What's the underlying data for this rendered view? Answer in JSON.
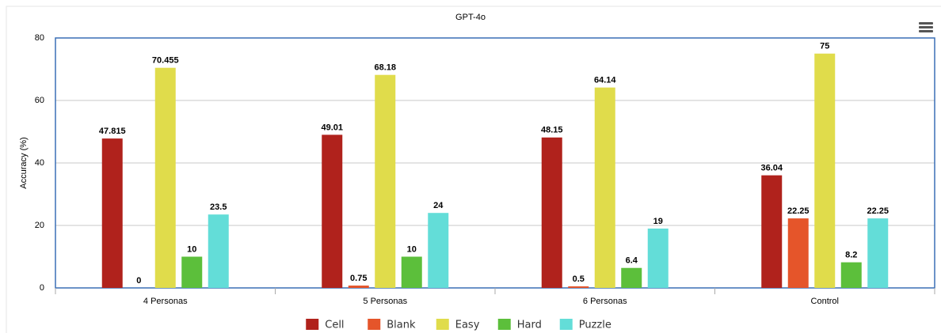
{
  "chart_data": {
    "type": "bar",
    "title": "GPT-4o",
    "y_label": "Accuracy (%)",
    "categories": [
      "4 Personas",
      "5 Personas",
      "6 Personas",
      "Control"
    ],
    "series": [
      {
        "name": "Cell",
        "color": "#b0221c",
        "values": [
          47.815,
          49.01,
          48.15,
          36.04
        ]
      },
      {
        "name": "Blank",
        "color": "#e5552a",
        "values": [
          0,
          0.75,
          0.5,
          22.25
        ]
      },
      {
        "name": "Easy",
        "color": "#e0dc4b",
        "values": [
          70.455,
          68.18,
          64.14,
          75
        ]
      },
      {
        "name": "Hard",
        "color": "#5cbf3b",
        "values": [
          10,
          10,
          6.4,
          8.2
        ]
      },
      {
        "name": "Puzzle",
        "color": "#63ddd8",
        "values": [
          23.5,
          24,
          19,
          22.25
        ]
      }
    ],
    "ylim": [
      0,
      80
    ],
    "yticks": [
      0,
      20,
      40,
      60,
      80
    ],
    "grid": true,
    "legend": "bottom"
  }
}
